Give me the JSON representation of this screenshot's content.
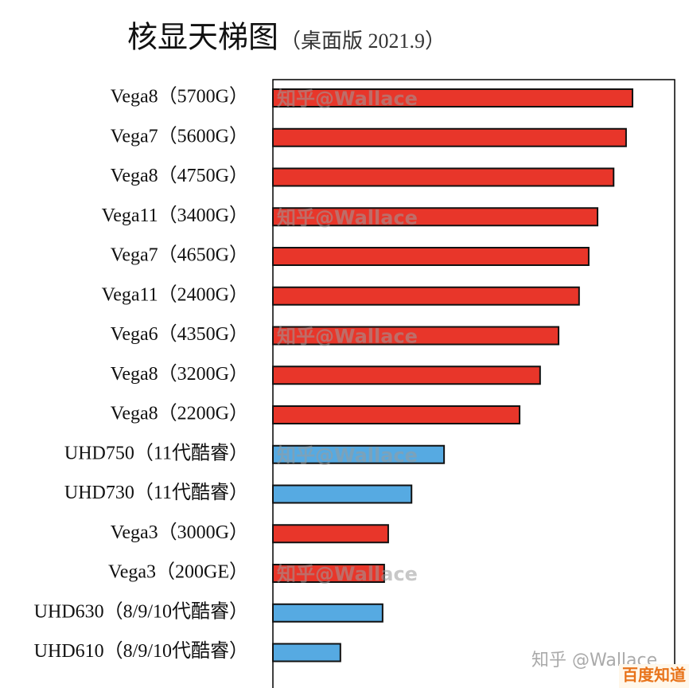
{
  "chart_data": {
    "type": "bar",
    "orientation": "horizontal",
    "title": "核显天梯图",
    "subtitle": "（桌面版 2021.9）",
    "categories": [
      "Vega8（5700G）",
      "Vega7（5600G）",
      "Vega8（4750G）",
      "Vega11（3400G）",
      "Vega7（4650G）",
      "Vega11（2400G）",
      "Vega6（4350G）",
      "Vega8（3200G）",
      "Vega8（2200G）",
      "UHD750（11代酷睿）",
      "UHD730（11代酷睿）",
      "Vega3（3000G）",
      "Vega3（200GE）",
      "UHD630（8/9/10代酷睿）",
      "UHD610（8/9/10代酷睿）"
    ],
    "values": [
      89.5,
      87.9,
      84.8,
      80.8,
      78.6,
      76.2,
      71.1,
      66.5,
      61.4,
      42.6,
      34.5,
      28.7,
      27.7,
      27.3,
      16.8
    ],
    "colors": [
      "#e8362a",
      "#e8362a",
      "#e8362a",
      "#e8362a",
      "#e8362a",
      "#e8362a",
      "#e8362a",
      "#e8362a",
      "#e8362a",
      "#56aae2",
      "#56aae2",
      "#e8362a",
      "#e8362a",
      "#56aae2",
      "#56aae2"
    ],
    "xlim": [
      0,
      100
    ],
    "watermark": "知乎@Wallace",
    "watermark_corner": "知乎 @Wallace",
    "badge": "百度知道"
  }
}
